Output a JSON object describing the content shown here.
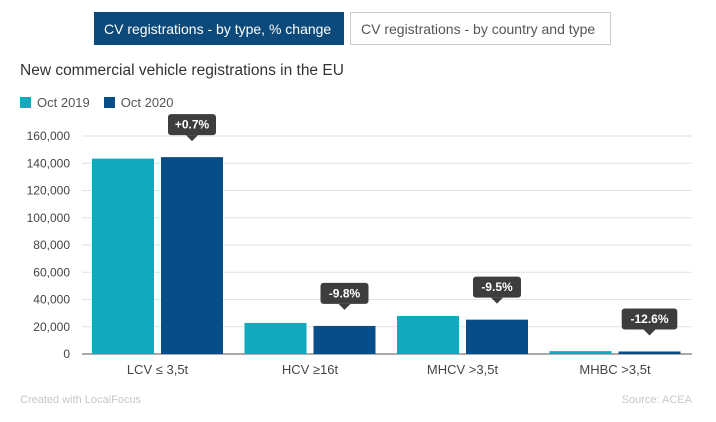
{
  "tabs": [
    {
      "label": "CV registrations - by type, % change",
      "active": true
    },
    {
      "label": "CV registrations - by country and type",
      "active": false
    }
  ],
  "title": "New commercial vehicle registrations in the EU",
  "legend": [
    {
      "label": "Oct 2019",
      "color": "#12a9bd"
    },
    {
      "label": "Oct 2020",
      "color": "#074d8a"
    }
  ],
  "footer": {
    "credit": "Created with LocalFocus",
    "source": "Source: ACEA"
  },
  "chart_data": {
    "type": "bar",
    "categories": [
      "LCV ≤ 3,5t",
      "HCV ≥16t",
      "MHCV >3,5t",
      "MHBC >3,5t"
    ],
    "series": [
      {
        "name": "Oct 2019",
        "color": "#12a9bd",
        "values": [
          143400,
          22800,
          27900,
          2100
        ]
      },
      {
        "name": "Oct 2020",
        "color": "#074d8a",
        "values": [
          144500,
          20600,
          25200,
          1850
        ]
      }
    ],
    "annotations": [
      "+0.7%",
      "-9.8%",
      "-9.5%",
      "-12.6%"
    ],
    "yticks": [
      "0",
      "20,000",
      "40,000",
      "60,000",
      "80,000",
      "100,000",
      "120,000",
      "140,000",
      "160,000"
    ],
    "ylim": [
      0,
      160000
    ],
    "grid": true,
    "legend_position": "top-left"
  }
}
